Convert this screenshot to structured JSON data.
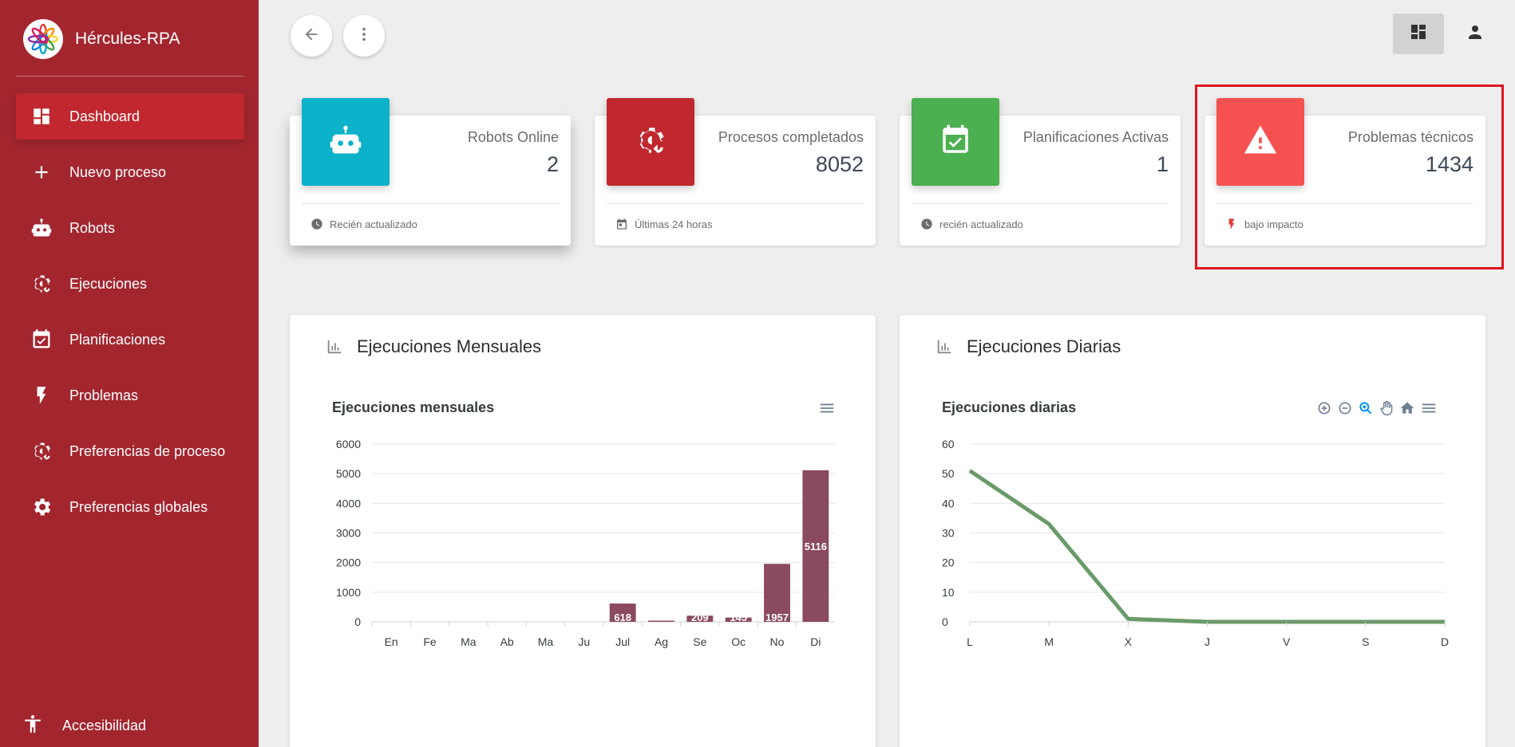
{
  "app": {
    "name": "Hércules-RPA"
  },
  "sidebar": {
    "items": [
      {
        "label": "Dashboard",
        "icon": "dashboard-icon"
      },
      {
        "label": "Nuevo proceso",
        "icon": "plus-icon"
      },
      {
        "label": "Robots",
        "icon": "robot-icon"
      },
      {
        "label": "Ejecuciones",
        "icon": "gear-sync-icon"
      },
      {
        "label": "Planificaciones",
        "icon": "calendar-check-icon"
      },
      {
        "label": "Problemas",
        "icon": "bolt-icon"
      },
      {
        "label": "Preferencias de proceso",
        "icon": "gear-sync-icon"
      },
      {
        "label": "Preferencias globales",
        "icon": "gear-icon"
      }
    ],
    "accessibility": "Accesibilidad"
  },
  "stats": [
    {
      "title": "Robots Online",
      "value": "2",
      "footer": "Recién actualizado",
      "color": "#0bb2c9"
    },
    {
      "title": "Procesos completados",
      "value": "8052",
      "footer": "Últimas 24 horas",
      "color": "#c0272f"
    },
    {
      "title": "Planificaciones Activas",
      "value": "1",
      "footer": "recién actualizado",
      "color": "#4caf50"
    },
    {
      "title": "Problemas técnicos",
      "value": "1434",
      "footer": "bajo impacto",
      "color": "#f55151"
    }
  ],
  "panels": {
    "monthly": {
      "heading": "Ejecuciones Mensuales",
      "chart_title": "Ejecuciones mensuales"
    },
    "daily": {
      "heading": "Ejecuciones Diarias",
      "chart_title": "Ejecuciones diarias"
    }
  },
  "chart_data": [
    {
      "type": "bar",
      "title": "Ejecuciones mensuales",
      "categories": [
        "En",
        "Fe",
        "Ma",
        "Ab",
        "Ma",
        "Ju",
        "Jul",
        "Ag",
        "Se",
        "Oc",
        "No",
        "Di"
      ],
      "values": [
        0,
        0,
        0,
        0,
        0,
        0,
        618,
        30,
        209,
        145,
        1957,
        5116
      ],
      "labels": [
        "",
        "",
        "",
        "",
        "",
        "",
        "618",
        "",
        "209",
        "145",
        "1957",
        "5116"
      ],
      "yticks": [
        0,
        1000,
        2000,
        3000,
        4000,
        5000,
        6000
      ],
      "ylim": [
        0,
        6000
      ],
      "color": "#8a4a5f",
      "grid": true
    },
    {
      "type": "line",
      "title": "Ejecuciones diarias",
      "categories": [
        "L",
        "M",
        "X",
        "J",
        "V",
        "S",
        "D"
      ],
      "values": [
        51,
        33,
        1,
        0,
        0,
        0,
        0
      ],
      "yticks": [
        0,
        10,
        20,
        30,
        40,
        50,
        60
      ],
      "ylim": [
        0,
        60
      ],
      "color": "#6a9a6a",
      "grid": true
    }
  ]
}
